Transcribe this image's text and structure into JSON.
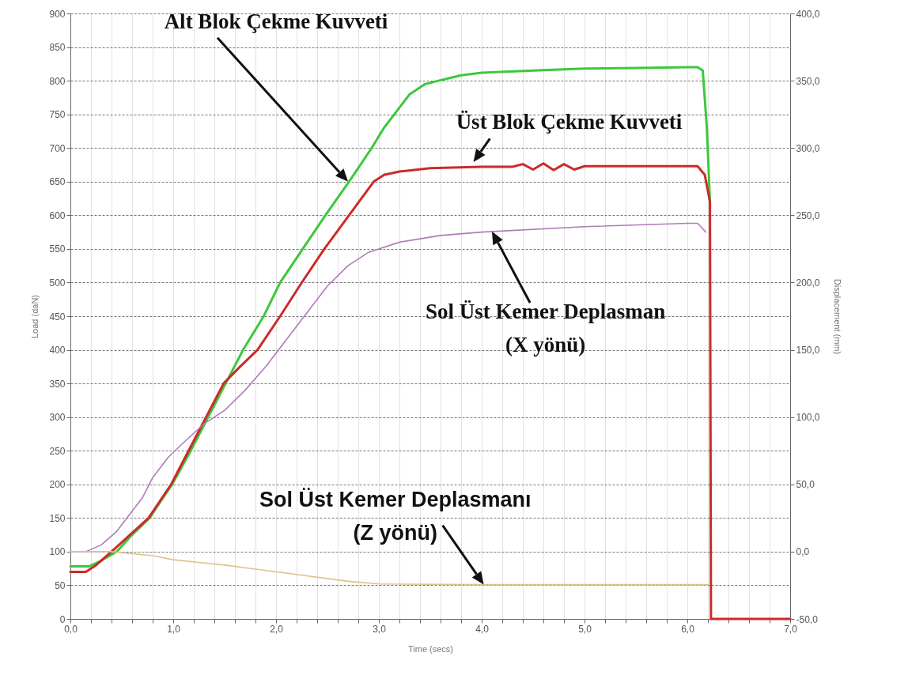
{
  "chart_data": {
    "type": "line",
    "xlabel": "Time (secs)",
    "ylabel": "Load (daN)",
    "y2label": "Displacement (mm)",
    "xlim": [
      0,
      7
    ],
    "ylim": [
      0,
      900
    ],
    "y2lim": [
      -50,
      400
    ],
    "xticks": [
      {
        "value": 0,
        "label": "0,0"
      },
      {
        "value": 0.2,
        "label": null
      },
      {
        "value": 0.4,
        "label": null
      },
      {
        "value": 0.6,
        "label": null
      },
      {
        "value": 0.8,
        "label": null
      },
      {
        "value": 1,
        "label": "1,0"
      },
      {
        "value": 1.2,
        "label": null
      },
      {
        "value": 1.4,
        "label": null
      },
      {
        "value": 1.6,
        "label": null
      },
      {
        "value": 1.8,
        "label": null
      },
      {
        "value": 2,
        "label": "2,0"
      },
      {
        "value": 2.2,
        "label": null
      },
      {
        "value": 2.4,
        "label": null
      },
      {
        "value": 2.6,
        "label": null
      },
      {
        "value": 2.8,
        "label": null
      },
      {
        "value": 3,
        "label": "3,0"
      },
      {
        "value": 3.2,
        "label": null
      },
      {
        "value": 3.4,
        "label": null
      },
      {
        "value": 3.6,
        "label": null
      },
      {
        "value": 3.8,
        "label": null
      },
      {
        "value": 4,
        "label": "4,0"
      },
      {
        "value": 4.2,
        "label": null
      },
      {
        "value": 4.4,
        "label": null
      },
      {
        "value": 4.6,
        "label": null
      },
      {
        "value": 4.8,
        "label": null
      },
      {
        "value": 5,
        "label": "5,0"
      },
      {
        "value": 5.2,
        "label": null
      },
      {
        "value": 5.4,
        "label": null
      },
      {
        "value": 5.6,
        "label": null
      },
      {
        "value": 5.8,
        "label": null
      },
      {
        "value": 6,
        "label": "6,0"
      },
      {
        "value": 6.2,
        "label": null
      },
      {
        "value": 6.4,
        "label": null
      },
      {
        "value": 6.6,
        "label": null
      },
      {
        "value": 6.8,
        "label": null
      },
      {
        "value": 7,
        "label": "7,0"
      }
    ],
    "yticks": [
      0,
      50,
      100,
      150,
      200,
      250,
      300,
      350,
      400,
      450,
      500,
      550,
      600,
      650,
      700,
      750,
      800,
      850,
      900
    ],
    "y2ticks": [
      {
        "value": -50,
        "label": "-50,0"
      },
      {
        "value": 0,
        "label": "0,0"
      },
      {
        "value": 50,
        "label": "50,0"
      },
      {
        "value": 100,
        "label": "100,0"
      },
      {
        "value": 150,
        "label": "150,0"
      },
      {
        "value": 200,
        "label": "200,0"
      },
      {
        "value": 250,
        "label": "250,0"
      },
      {
        "value": 300,
        "label": "300,0"
      },
      {
        "value": 350,
        "label": "350,0"
      },
      {
        "value": 400,
        "label": "400,0"
      }
    ],
    "grid": true,
    "series": [
      {
        "color": "#3cc83c",
        "x": [
          0,
          0.18,
          0.28,
          0.45,
          0.6,
          0.77,
          0.9,
          0.99,
          1.17,
          1.34,
          1.51,
          1.68,
          1.88,
          2.04,
          2.26,
          2.48,
          2.71,
          2.93,
          3.05,
          3.15,
          3.3,
          3.45,
          3.58,
          3.8,
          4.0,
          4.5,
          5.0,
          5.5,
          6.0,
          6.1,
          6.15,
          6.19,
          6.22
        ],
        "values": [
          78,
          78,
          85,
          100,
          125,
          150,
          180,
          200,
          250,
          300,
          350,
          400,
          450,
          500,
          550,
          600,
          650,
          700,
          730,
          750,
          780,
          795,
          800,
          808,
          812,
          815,
          818,
          819,
          820,
          820,
          815,
          730,
          620
        ]
      },
      {
        "color": "#cc2a2a",
        "x": [
          0,
          0.15,
          0.25,
          0.4,
          0.58,
          0.76,
          0.98,
          1.15,
          1.32,
          1.49,
          1.65,
          1.82,
          2.04,
          2.25,
          2.47,
          2.71,
          2.95,
          3.05,
          3.2,
          3.5,
          4.0,
          4.3,
          4.4,
          4.5,
          4.6,
          4.7,
          4.8,
          4.9,
          5.0,
          5.5,
          6.1,
          6.17,
          6.22,
          6.23,
          7.0
        ],
        "values": [
          70,
          70,
          80,
          100,
          125,
          150,
          200,
          250,
          300,
          350,
          375,
          400,
          450,
          500,
          550,
          600,
          650,
          660,
          665,
          670,
          672,
          672,
          676,
          668,
          677,
          667,
          676,
          668,
          673,
          673,
          673,
          660,
          620,
          0,
          0
        ]
      },
      {
        "color": "#b07ab8",
        "axis": "y2",
        "x": [
          0,
          0.15,
          0.3,
          0.45,
          0.55,
          0.7,
          0.8,
          0.95,
          1.1,
          1.3,
          1.5,
          1.7,
          1.9,
          2.1,
          2.3,
          2.5,
          2.7,
          2.9,
          3.2,
          3.6,
          4.0,
          5.0,
          6.0,
          6.1,
          6.18
        ],
        "values": [
          0,
          0,
          5,
          15,
          25,
          40,
          55,
          70,
          81,
          95,
          105,
          120,
          137.5,
          157.5,
          177.5,
          197.5,
          212.5,
          222.5,
          230,
          235,
          237.5,
          241.5,
          244,
          244,
          237.5
        ]
      },
      {
        "color": "#e2c088",
        "axis": "y2",
        "x": [
          0,
          0.4,
          0.8,
          1.0,
          1.5,
          1.8,
          2.2,
          2.7,
          3.0,
          4.0,
          6.2
        ],
        "values": [
          0,
          0,
          -3,
          -6,
          -10,
          -13,
          -17,
          -22,
          -24,
          -24.5,
          -24.5
        ]
      }
    ],
    "annotations": [
      "Alt Blok Çekme Kuvveti",
      {
        "text": "Üst Blok Çekme Kuvveti",
        "x": 3.92,
        "y": 679
      },
      "Sol Üst Kemer Deplasman\n(X yönü)",
      {
        "text": "Sol Üst Kemer Deplasmanı\n(Z yönü)",
        "x": 4.02,
        "y": 51
      }
    ]
  }
}
